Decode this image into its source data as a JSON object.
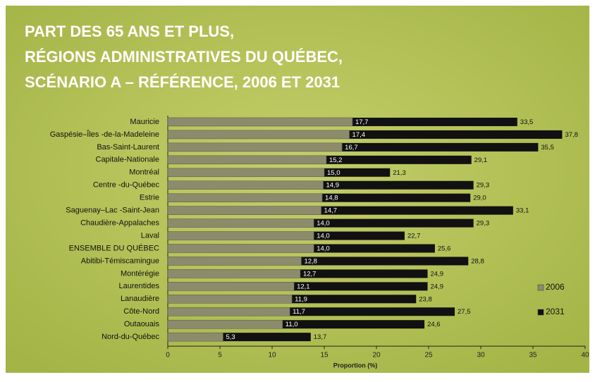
{
  "chart_data": {
    "type": "bar",
    "title": [
      "PART DES 65 ANS ET PLUS,",
      "RÉGIONS ADMINISTRATIVES DU QUÉBEC,",
      "SCÉNARIO A – RÉFÉRENCE, 2006 ET 2031"
    ],
    "x_label": "Proportion (%)",
    "categories": [
      "Mauricie",
      "Gaspésie–Îles -de-la-Madeleine",
      "Bas-Saint-Laurent",
      "Capitale-Nationale",
      "Montréal",
      "Centre -du-Québec",
      "Estrie",
      "Saguenay–Lac -Saint-Jean",
      "Chaudière-Appalaches",
      "Laval",
      "ENSEMBLE DU QUÉBEC",
      "Abitibi-Témiscamingue",
      "Montérégie",
      "Laurentides",
      "Lanaudière",
      "Côte-Nord",
      "Outaouais",
      "Nord-du-Québec"
    ],
    "series": [
      {
        "name": "2031",
        "color": "#111111",
        "values": [
          33.5,
          37.8,
          35.5,
          29.1,
          21.3,
          29.3,
          29.0,
          33.1,
          29.3,
          22.7,
          25.6,
          28.8,
          24.9,
          24.9,
          23.8,
          27.5,
          24.6,
          13.7
        ],
        "value_labels": [
          "33,5",
          "37,8",
          "35,5",
          "29,1",
          "21,3",
          "29,3",
          "29,0",
          "33,1",
          "29,3",
          "22,7",
          "25,6",
          "28,8",
          "24,9",
          "24,9",
          "23,8",
          "27,5",
          "24,6",
          "13,7"
        ]
      },
      {
        "name": "2006",
        "color": "#8c8c6c",
        "values": [
          17.7,
          17.4,
          16.7,
          15.2,
          15.0,
          14.9,
          14.8,
          14.7,
          14.0,
          14.0,
          14.0,
          12.8,
          12.7,
          12.1,
          11.9,
          11.7,
          11.0,
          5.3
        ],
        "value_labels": [
          "17,7",
          "17,4",
          "16,7",
          "15,2",
          "15,0",
          "14,9",
          "14,8",
          "14,7",
          "14,0",
          "14,0",
          "14,0",
          "12,8",
          "12,7",
          "12,1",
          "11,9",
          "11,7",
          "11,0",
          "5,3"
        ]
      }
    ],
    "xlim": [
      0,
      40
    ],
    "xticks": [
      0,
      5,
      10,
      15,
      20,
      25,
      30,
      35,
      40
    ]
  }
}
